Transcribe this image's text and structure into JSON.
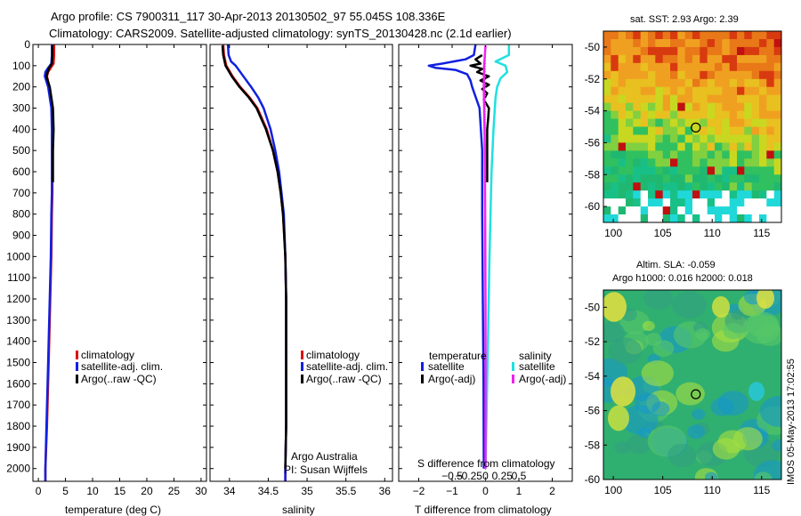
{
  "title_line1": "Argo profile: CS 7900311_117 30-Apr-2013 20130502_97 55.045S 108.336E",
  "title_line2": "Climatology: CARS2009. Satellite-adjusted climatology: synTS_20130428.nc (2.1d earlier)",
  "side_stamp": "IMOS 05-May-2013 17:02:55",
  "panel_credit": [
    "Argo Australia",
    "PI: Susan Wijffels"
  ],
  "colors": {
    "climatology": "#e01010",
    "satellite": "#1020e0",
    "argo": "#000000",
    "sat_salinity": "#20e0e0",
    "argo_salinity": "#f020f0"
  },
  "chart_data": [
    {
      "type": "line",
      "name": "temperature-profile",
      "xlabel": "temperature (deg C)",
      "ylabel": "",
      "xlim": [
        -1,
        31
      ],
      "ylim": [
        2060,
        0
      ],
      "xticks": [
        0,
        5,
        10,
        15,
        20,
        25,
        30
      ],
      "yticks": [
        0,
        100,
        200,
        300,
        400,
        500,
        600,
        700,
        800,
        900,
        1000,
        1100,
        1200,
        1300,
        1400,
        1500,
        1600,
        1700,
        1800,
        1900,
        2000
      ],
      "legend": [
        "climatology",
        "satellite-adj. clim.",
        "Argo(..raw -QC)"
      ],
      "series": [
        {
          "name": "climatology",
          "color": "#e01010",
          "depth": [
            0,
            50,
            90,
            110,
            130,
            150,
            200,
            300,
            400,
            500,
            600,
            650,
            700,
            800,
            1000,
            1200,
            1500,
            1800,
            2000,
            2060
          ],
          "values": [
            2.9,
            2.9,
            2.8,
            2.3,
            1.8,
            1.6,
            2.0,
            2.5,
            2.6,
            2.6,
            2.6,
            2.6,
            2.6,
            2.5,
            2.4,
            2.2,
            1.9,
            1.6,
            1.3,
            1.3
          ]
        },
        {
          "name": "satellite-adj. clim.",
          "color": "#1020e0",
          "depth": [
            0,
            50,
            90,
            110,
            130,
            150,
            200,
            300,
            400,
            500,
            600,
            700,
            800,
            1000,
            1200,
            1500,
            1800,
            2000,
            2060
          ],
          "values": [
            2.5,
            2.5,
            2.4,
            1.8,
            1.3,
            1.2,
            1.8,
            2.4,
            2.5,
            2.5,
            2.5,
            2.5,
            2.4,
            2.3,
            2.1,
            1.8,
            1.5,
            1.3,
            1.3
          ]
        },
        {
          "name": "Argo(..raw -QC)",
          "color": "#000000",
          "depth": [
            5,
            50,
            90,
            110,
            130,
            150,
            200,
            300,
            400,
            500,
            600,
            650
          ],
          "values": [
            2.6,
            2.6,
            2.5,
            2.0,
            1.7,
            1.5,
            2.1,
            2.7,
            2.8,
            2.7,
            2.7,
            2.7
          ]
        }
      ]
    },
    {
      "type": "line",
      "name": "salinity-profile",
      "xlabel": "salinity",
      "ylabel": "",
      "xlim": [
        33.75,
        36.1
      ],
      "ylim": [
        2060,
        0
      ],
      "xticks": [
        34,
        34.5,
        35,
        35.5,
        36
      ],
      "legend": [
        "climatology",
        "satellite-adj. clim.",
        "Argo(..raw -QC)"
      ],
      "series": [
        {
          "name": "climatology",
          "color": "#e01010",
          "depth": [
            0,
            50,
            100,
            150,
            200,
            250,
            300,
            400,
            500,
            600,
            700,
            800,
            1000,
            1200,
            1500,
            1800,
            2000,
            2060
          ],
          "values": [
            33.92,
            33.93,
            33.96,
            34.04,
            34.14,
            34.26,
            34.36,
            34.48,
            34.56,
            34.62,
            34.66,
            34.69,
            34.72,
            34.73,
            34.73,
            34.73,
            34.72,
            34.72
          ]
        },
        {
          "name": "satellite-adj. clim.",
          "color": "#1020e0",
          "depth": [
            0,
            50,
            80,
            100,
            150,
            200,
            250,
            300,
            400,
            500,
            600,
            700,
            800,
            1000,
            1200,
            1500,
            1800,
            2000,
            2060
          ],
          "values": [
            33.98,
            33.99,
            34.02,
            34.08,
            34.18,
            34.28,
            34.37,
            34.44,
            34.53,
            34.59,
            34.64,
            34.67,
            34.7,
            34.72,
            34.73,
            34.73,
            34.73,
            34.72,
            34.72
          ]
        },
        {
          "name": "Argo(..raw -QC)",
          "color": "#000000",
          "depth": [
            5,
            50,
            100,
            150,
            200,
            250,
            300,
            400,
            500,
            600,
            700,
            800,
            1000,
            1200,
            1500,
            1800,
            2000
          ],
          "values": [
            33.91,
            33.92,
            33.95,
            34.03,
            34.13,
            34.25,
            34.35,
            34.47,
            34.56,
            34.62,
            34.66,
            34.69,
            34.72,
            34.73,
            34.73,
            34.73,
            34.72
          ]
        }
      ]
    },
    {
      "type": "line",
      "name": "difference-profile",
      "xlabel": "T difference from climatology",
      "xlabel_top": "S difference from climatology",
      "xlim": [
        -2.6,
        2.6
      ],
      "ylim": [
        2060,
        0
      ],
      "xticks": [
        -2,
        -1,
        0,
        1,
        2
      ],
      "xticks_labels": [
        "−2",
        "−1",
        "0",
        "1",
        "2"
      ],
      "sticks": [
        -1,
        -0.5,
        0,
        0.5,
        1
      ],
      "sticks_labels": [
        "−0.5",
        "−0.25",
        "0",
        "0.25",
        "0.5"
      ],
      "legend_temperature_title": "temperature",
      "legend_salinity_title": "salinity",
      "legend": [
        "satellite",
        "Argo(-adj)",
        "satellite",
        "Argo(-adj)"
      ],
      "series": [
        {
          "name": "T satellite",
          "color": "#1020e0",
          "depth": [
            0,
            50,
            70,
            90,
            100,
            110,
            120,
            140,
            170,
            200,
            300,
            500,
            800,
            1200,
            1600,
            2000
          ],
          "values": [
            -0.3,
            -0.35,
            -0.6,
            -1.3,
            -1.7,
            -1.5,
            -0.9,
            -0.55,
            -0.45,
            -0.4,
            -0.18,
            -0.1,
            -0.1,
            -0.08,
            -0.06,
            -0.05
          ]
        },
        {
          "name": "T Argo(-adj)",
          "color": "#000000",
          "depth": [
            50,
            70,
            90,
            100,
            115,
            130,
            150,
            170,
            190,
            210,
            230,
            260,
            300,
            350,
            400,
            450,
            500,
            550,
            600,
            650
          ],
          "values": [
            -0.1,
            -0.3,
            -0.15,
            -0.45,
            -0.1,
            -0.25,
            0.1,
            -0.15,
            0.1,
            -0.1,
            0.05,
            -0.05,
            0.1,
            0.08,
            0.05,
            0.05,
            0.05,
            0.05,
            0.05,
            0.05
          ]
        },
        {
          "name": "S satellite",
          "color": "#20e0e0",
          "depth": [
            0,
            50,
            80,
            100,
            130,
            160,
            200,
            250,
            300,
            400,
            600,
            1000,
            1500,
            2000
          ],
          "values": [
            0.7,
            0.7,
            0.3,
            0.6,
            0.65,
            0.45,
            0.35,
            0.3,
            0.28,
            0.24,
            0.18,
            0.12,
            0.06,
            0.0
          ]
        },
        {
          "name": "S Argo(-adj)",
          "color": "#f020f0",
          "depth": [
            5,
            50,
            100,
            200,
            300,
            500,
            800,
            1200,
            1600,
            2000
          ],
          "values": [
            0.0,
            -0.02,
            -0.04,
            -0.05,
            -0.04,
            -0.02,
            -0.01,
            0.0,
            0.0,
            0.0
          ]
        }
      ]
    },
    {
      "type": "heatmap",
      "name": "sst-map",
      "title": "sat. SST: 2.93 Argo: 2.39",
      "xlim": [
        99,
        117
      ],
      "ylim": [
        -61,
        -49
      ],
      "xticks": [
        100,
        105,
        110,
        115
      ],
      "yticks": [
        -50,
        -52,
        -54,
        -56,
        -58,
        -60
      ],
      "marker": [
        108.34,
        -55.05
      ]
    },
    {
      "type": "heatmap",
      "name": "sla-map",
      "title_line1": "Altim. SLA: -0.059",
      "title_line2": "Argo h1000: 0.016 h2000: 0.018",
      "xlim": [
        99,
        117
      ],
      "ylim": [
        -60,
        -49
      ],
      "xticks": [
        100,
        105,
        110,
        115
      ],
      "yticks": [
        -50,
        -52,
        -54,
        -56,
        -58,
        -60
      ],
      "marker": [
        108.34,
        -55.05
      ]
    }
  ]
}
